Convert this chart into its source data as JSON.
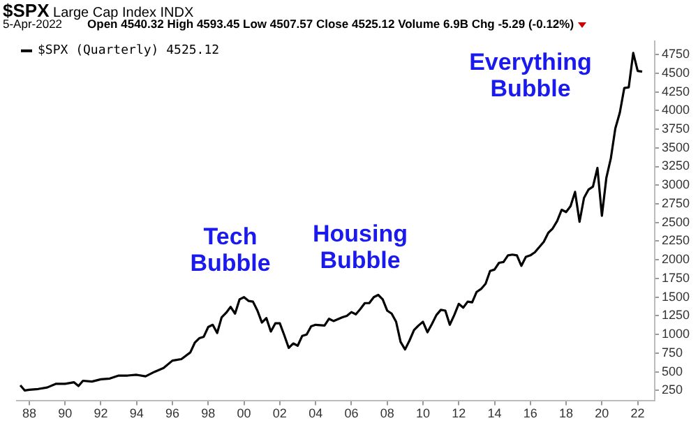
{
  "chart_data": {
    "type": "line",
    "title": "$SPX",
    "subtitle": "Large Cap Index  INDX",
    "annotations": [
      "5-Apr-2022",
      "Open 4540.32  High 4593.45  Low 4507.57  Close 4525.12  Volume 6.9B  Chg -5.29 (-0.12%)",
      "Tech Bubble",
      "Housing Bubble",
      "Everything Bubble"
    ],
    "x": [
      1987.5,
      1987.75,
      1988,
      1988.5,
      1989,
      1989.5,
      1990,
      1990.5,
      1990.75,
      1991,
      1991.5,
      1992,
      1992.5,
      1993,
      1993.5,
      1994,
      1994.5,
      1995,
      1995.5,
      1996,
      1996.5,
      1997,
      1997.25,
      1997.5,
      1997.75,
      1998,
      1998.25,
      1998.5,
      1998.75,
      1999,
      1999.25,
      1999.5,
      1999.75,
      2000,
      2000.25,
      2000.5,
      2000.75,
      2001,
      2001.25,
      2001.5,
      2001.75,
      2002,
      2002.25,
      2002.5,
      2002.75,
      2003,
      2003.25,
      2003.5,
      2003.75,
      2004,
      2004.5,
      2004.75,
      2005,
      2005.5,
      2005.75,
      2006,
      2006.25,
      2006.5,
      2006.75,
      2007,
      2007.25,
      2007.5,
      2007.75,
      2008,
      2008.25,
      2008.5,
      2008.75,
      2009,
      2009.25,
      2009.5,
      2009.75,
      2010,
      2010.25,
      2010.5,
      2010.75,
      2011,
      2011.25,
      2011.5,
      2011.75,
      2012,
      2012.25,
      2012.5,
      2012.75,
      2013,
      2013.25,
      2013.5,
      2013.75,
      2014,
      2014.25,
      2014.5,
      2014.75,
      2015,
      2015.25,
      2015.5,
      2015.75,
      2016,
      2016.25,
      2016.5,
      2016.75,
      2017,
      2017.25,
      2017.5,
      2017.75,
      2018,
      2018.25,
      2018.5,
      2018.75,
      2019,
      2019.25,
      2019.5,
      2019.75,
      2020,
      2020.25,
      2020.5,
      2020.75,
      2021,
      2021.25,
      2021.5,
      2021.75,
      2022,
      2022.25
    ],
    "series": [
      {
        "name": "$SPX (Quarterly) 4525.12",
        "color": "#000000",
        "values": [
          320,
          250,
          260,
          270,
          290,
          340,
          340,
          360,
          310,
          380,
          370,
          400,
          410,
          450,
          450,
          460,
          440,
          500,
          550,
          650,
          670,
          760,
          890,
          950,
          970,
          1100,
          1130,
          1020,
          1230,
          1290,
          1370,
          1280,
          1470,
          1500,
          1450,
          1440,
          1320,
          1160,
          1220,
          1040,
          1150,
          1150,
          990,
          820,
          880,
          850,
          980,
          1000,
          1110,
          1130,
          1120,
          1210,
          1180,
          1230,
          1250,
          1300,
          1270,
          1340,
          1420,
          1420,
          1500,
          1530,
          1470,
          1320,
          1280,
          1170,
          900,
          800,
          920,
          1060,
          1120,
          1170,
          1030,
          1140,
          1260,
          1330,
          1320,
          1130,
          1260,
          1410,
          1360,
          1440,
          1430,
          1570,
          1610,
          1680,
          1850,
          1870,
          1960,
          1970,
          2060,
          2070,
          2060,
          1920,
          2040,
          2060,
          2100,
          2170,
          2240,
          2360,
          2420,
          2520,
          2670,
          2640,
          2720,
          2910,
          2510,
          2830,
          2940,
          2980,
          3230,
          2590,
          3100,
          3360,
          3760,
          3970,
          4300,
          4310,
          4770,
          4530,
          4520
        ]
      }
    ],
    "xlim": [
      1987.3,
      2022.95
    ],
    "xticks": [
      {
        "value": 1988,
        "label": "88"
      },
      {
        "value": 1990,
        "label": "90"
      },
      {
        "value": 1992,
        "label": "92"
      },
      {
        "value": 1994,
        "label": "94"
      },
      {
        "value": 1996,
        "label": "96"
      },
      {
        "value": 1998,
        "label": "98"
      },
      {
        "value": 2000,
        "label": "00"
      },
      {
        "value": 2002,
        "label": "02"
      },
      {
        "value": 2004,
        "label": "04"
      },
      {
        "value": 2006,
        "label": "06"
      },
      {
        "value": 2008,
        "label": "08"
      },
      {
        "value": 2010,
        "label": "10"
      },
      {
        "value": 2012,
        "label": "12"
      },
      {
        "value": 2014,
        "label": "14"
      },
      {
        "value": 2016,
        "label": "16"
      },
      {
        "value": 2018,
        "label": "18"
      },
      {
        "value": 2020,
        "label": "20"
      },
      {
        "value": 2022,
        "label": "22"
      }
    ],
    "ylim": [
      110,
      4930
    ],
    "yticks": [
      250,
      500,
      750,
      1000,
      1250,
      1500,
      1750,
      2000,
      2250,
      2500,
      2750,
      3000,
      3250,
      3500,
      3750,
      4000,
      4250,
      4500,
      4750
    ],
    "grid": false,
    "legend": "top left",
    "marker": "none",
    "line_style": "solid"
  }
}
